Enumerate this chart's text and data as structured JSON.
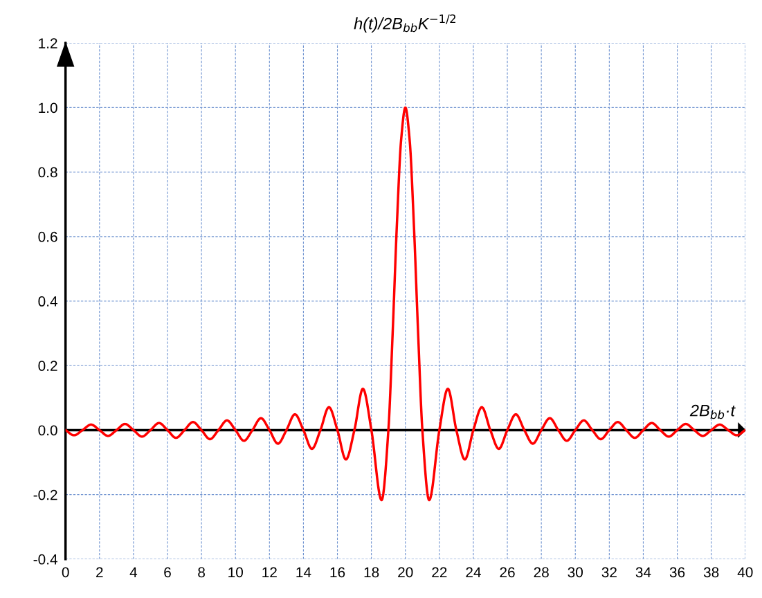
{
  "chart_data": {
    "type": "line",
    "ylabel": "h(t)/2B$_{bb}$K$^{−1/2}$",
    "xlabel": "2B$_{bb}$·t",
    "x": [
      0,
      0.5,
      1,
      1.5,
      2,
      2.5,
      3,
      3.5,
      4,
      4.5,
      5,
      5.5,
      6,
      6.5,
      7,
      7.5,
      8,
      8.5,
      9,
      9.5,
      10,
      10.5,
      11,
      11.5,
      12,
      12.5,
      13,
      13.5,
      14,
      14.5,
      15,
      15.5,
      16,
      16.5,
      17,
      17.5,
      18,
      18.6,
      19,
      19.25,
      19.5,
      19.75,
      20,
      20.25,
      20.5,
      20.75,
      21,
      21.4,
      22,
      22.5,
      23,
      23.5,
      24,
      24.5,
      25,
      25.5,
      26,
      26.5,
      27,
      27.5,
      28,
      28.5,
      29,
      29.5,
      30,
      30.5,
      31,
      31.5,
      32,
      32.5,
      33,
      33.5,
      34,
      34.5,
      35,
      35.5,
      36,
      36.5,
      37,
      37.5,
      38,
      38.5,
      39,
      39.5,
      40
    ],
    "series": [
      {
        "color": "#ff0000",
        "values": [
          0,
          -0.016,
          0,
          0.017,
          0,
          -0.018,
          0,
          0.019,
          0,
          -0.02,
          0,
          0.022,
          0,
          -0.024,
          0,
          0.025,
          0,
          -0.028,
          0,
          0.03,
          0,
          -0.033,
          0,
          0.037,
          0,
          -0.042,
          0,
          0.049,
          0,
          -0.058,
          0,
          0.071,
          0,
          -0.091,
          0,
          0.128,
          0,
          -0.217,
          0,
          0.3,
          0.637,
          0.9,
          1.0,
          0.9,
          0.637,
          0.3,
          0,
          -0.217,
          0,
          0.128,
          0,
          -0.091,
          0,
          0.071,
          0,
          -0.058,
          0,
          0.049,
          0,
          -0.042,
          0,
          0.037,
          0,
          -0.033,
          0,
          0.03,
          0,
          -0.028,
          0,
          0.025,
          0,
          -0.024,
          0,
          0.022,
          0,
          -0.02,
          0,
          0.019,
          0,
          -0.018,
          0,
          0.017,
          0,
          -0.016,
          0
        ]
      }
    ],
    "xlim": [
      0,
      40
    ],
    "xticks": [
      0,
      2,
      4,
      6,
      8,
      10,
      12,
      14,
      16,
      18,
      20,
      22,
      24,
      26,
      28,
      30,
      32,
      34,
      36,
      38,
      40
    ],
    "ylim": [
      -0.4,
      1.2
    ],
    "yticks": [
      {
        "value": -0.4,
        "label": "-0.4"
      },
      {
        "value": -0.2,
        "label": "-0.2"
      },
      {
        "value": 0,
        "label": "0.0"
      },
      {
        "value": 0.2,
        "label": "0.2"
      },
      {
        "value": 0.4,
        "label": "0.4"
      },
      {
        "value": 0.6,
        "label": "0.6"
      },
      {
        "value": 0.8,
        "label": "0.8"
      },
      {
        "value": 1.0,
        "label": "1.0"
      },
      {
        "value": 1.2,
        "label": "1.2"
      }
    ],
    "ref_lines": [
      {
        "axis": "y",
        "value": 0,
        "color": "#000000"
      }
    ],
    "grid": true,
    "legend": false,
    "marker": "none",
    "line_style": "solid"
  }
}
